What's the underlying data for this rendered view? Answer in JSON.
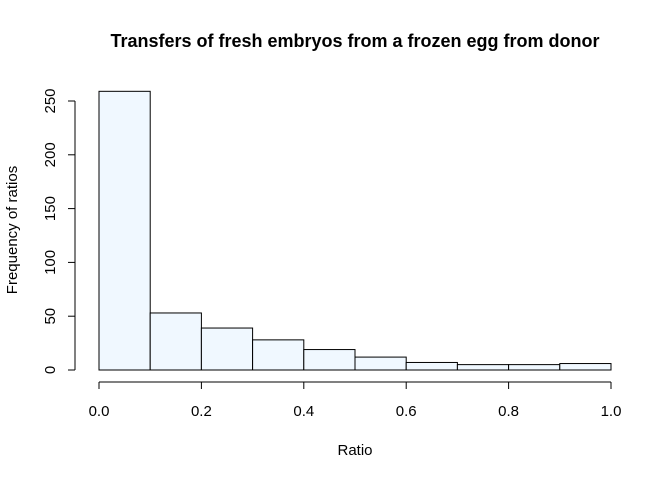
{
  "chart_data": {
    "type": "bar",
    "title": "Transfers of fresh embryos from a frozen egg from donor",
    "xlabel": "Ratio",
    "ylabel": "Frequency of ratios",
    "bin_edges": [
      0.0,
      0.1,
      0.2,
      0.3,
      0.4,
      0.5,
      0.6,
      0.7,
      0.8,
      0.9,
      1.0
    ],
    "values": [
      259,
      53,
      39,
      28,
      19,
      12,
      7,
      5,
      5,
      6
    ],
    "xlim": [
      0.0,
      1.0
    ],
    "ylim": [
      0,
      259
    ],
    "x_ticks": [
      "0.0",
      "0.2",
      "0.4",
      "0.6",
      "0.8",
      "1.0"
    ],
    "y_ticks": [
      "0",
      "50",
      "100",
      "150",
      "200",
      "250"
    ],
    "bar_fill": "#f0f8ff",
    "grid": false
  }
}
